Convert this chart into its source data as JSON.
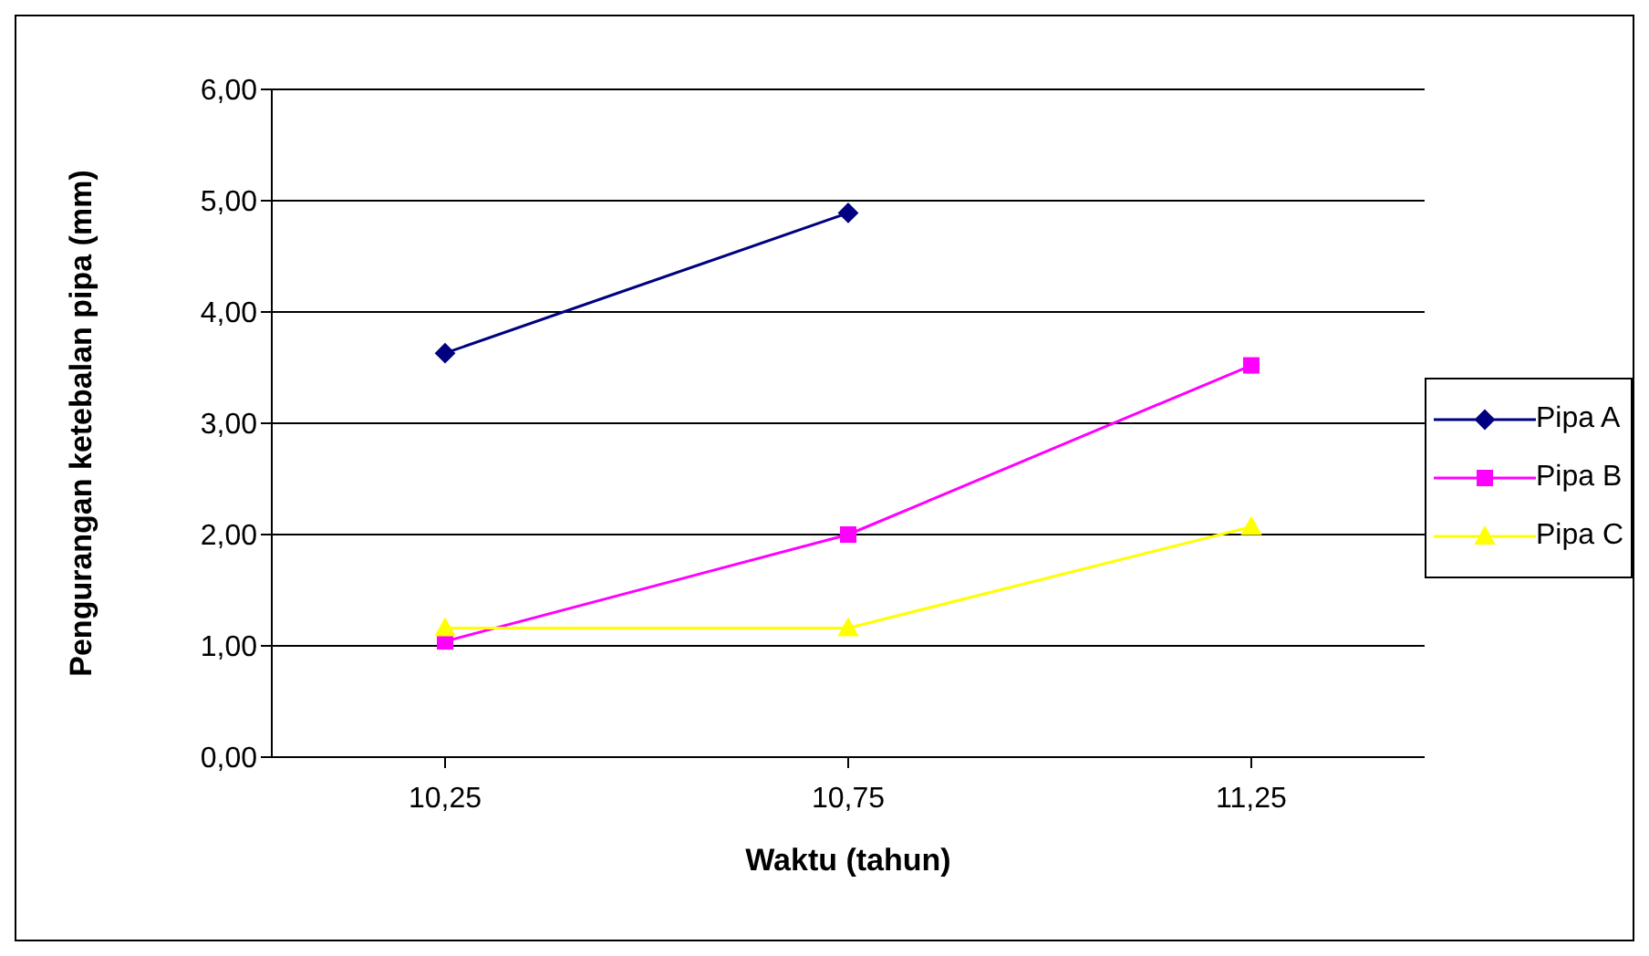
{
  "chart_data": {
    "type": "line",
    "xlabel": "Waktu (tahun)",
    "ylabel": "Pengurangan ketebalan pipa (mm)",
    "categories": [
      "10,25",
      "10,75",
      "11,25"
    ],
    "series": [
      {
        "name": "Pipa A",
        "color": "#000080",
        "marker": "diamond",
        "values": [
          3.63,
          4.89,
          null
        ]
      },
      {
        "name": "Pipa B",
        "color": "#ff00ff",
        "marker": "square",
        "values": [
          1.04,
          2.0,
          3.52
        ]
      },
      {
        "name": "Pipa C",
        "color": "#ffff00",
        "marker": "triangle",
        "values": [
          1.16,
          1.16,
          2.07
        ]
      }
    ],
    "ylim": [
      0,
      6
    ],
    "yticks": [
      {
        "value": 0,
        "label": "0,00"
      },
      {
        "value": 1,
        "label": "1,00"
      },
      {
        "value": 2,
        "label": "2,00"
      },
      {
        "value": 3,
        "label": "3,00"
      },
      {
        "value": 4,
        "label": "4,00"
      },
      {
        "value": 5,
        "label": "5,00"
      },
      {
        "value": 6,
        "label": "6,00"
      }
    ],
    "grid": "y",
    "legend": "right"
  }
}
